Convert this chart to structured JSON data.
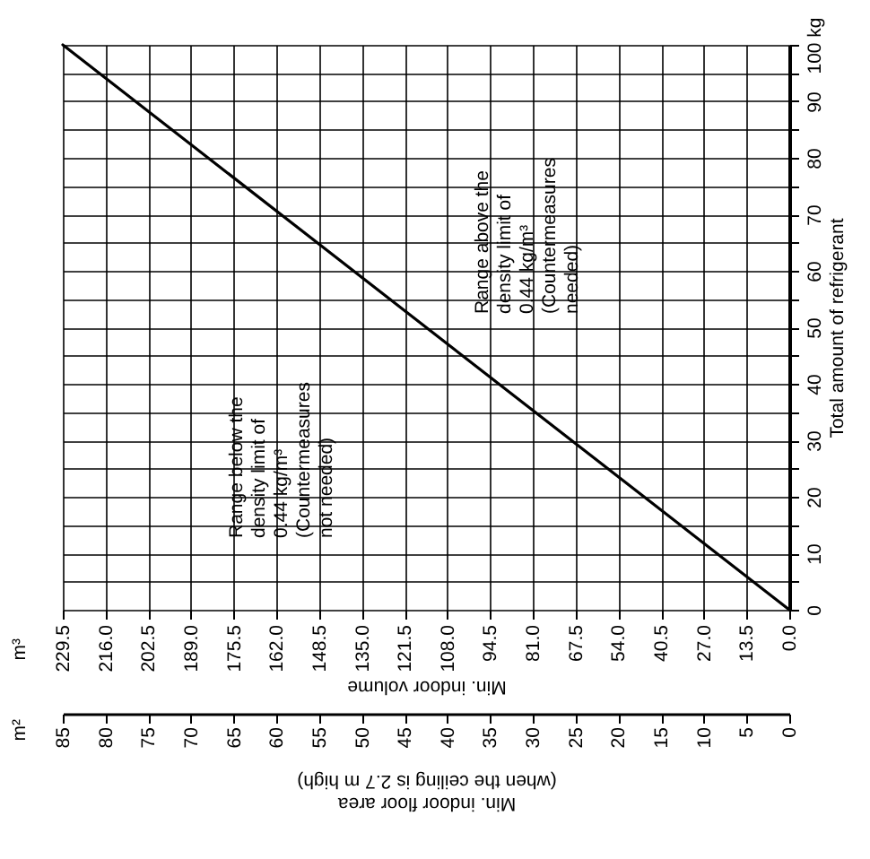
{
  "chart_data": {
    "type": "line",
    "xlabel": "Min. indoor volume",
    "x2label": "Min. indoor floor area\n(when the ceiling is 2.7 m high)",
    "ylabel": "Total amount of refrigerant",
    "x": [
      0,
      229.5
    ],
    "series": [
      {
        "color": "#000000",
        "values": [
          0,
          100
        ]
      }
    ],
    "xlim": [
      229.5,
      0
    ],
    "xticks": [
      {
        "value": 229.5,
        "label": "229.5"
      },
      {
        "value": 216,
        "label": "216.0"
      },
      202.5,
      {
        "value": 189,
        "label": "189.0"
      },
      175.5,
      {
        "value": 162,
        "label": "162.0"
      },
      148.5,
      {
        "value": 135,
        "label": "135.0"
      },
      121.5,
      {
        "value": 108,
        "label": "108.0"
      },
      94.5,
      {
        "value": 81,
        "label": "81.0"
      },
      67.5,
      {
        "value": 54,
        "label": "54.0"
      },
      40.5,
      {
        "value": 27,
        "label": "27.0"
      },
      13.5,
      {
        "value": 0,
        "label": "0.0"
      }
    ],
    "x2lim": [
      85,
      0
    ],
    "x2ticks": [
      85,
      80,
      75,
      70,
      65,
      60,
      55,
      50,
      45,
      40,
      35,
      30,
      25,
      20,
      15,
      10,
      5,
      0
    ],
    "ylim": [
      0,
      100
    ],
    "yticks": [
      0,
      {
        "value": 5,
        "label": null
      },
      10,
      {
        "value": 15,
        "label": null
      },
      20,
      {
        "value": 25,
        "label": null
      },
      30,
      {
        "value": 35,
        "label": null
      },
      40,
      {
        "value": 45,
        "label": null
      },
      50,
      {
        "value": 55,
        "label": null
      },
      60,
      {
        "value": 65,
        "label": null
      },
      70,
      {
        "value": 75,
        "label": null
      },
      80,
      {
        "value": 85,
        "label": null
      },
      90,
      {
        "value": 95,
        "label": null
      },
      {
        "value": 100,
        "label": "100 kg"
      }
    ],
    "grid": true,
    "annotations": [
      "Range below the\ndensity limit of\n0.44 kg/m³\n(Countermeasures\nnot needed)",
      "Range above the\ndensity limit of\n0.44 kg/m³\n(Countermeasures\nneeded)",
      "m³",
      "m²"
    ]
  }
}
